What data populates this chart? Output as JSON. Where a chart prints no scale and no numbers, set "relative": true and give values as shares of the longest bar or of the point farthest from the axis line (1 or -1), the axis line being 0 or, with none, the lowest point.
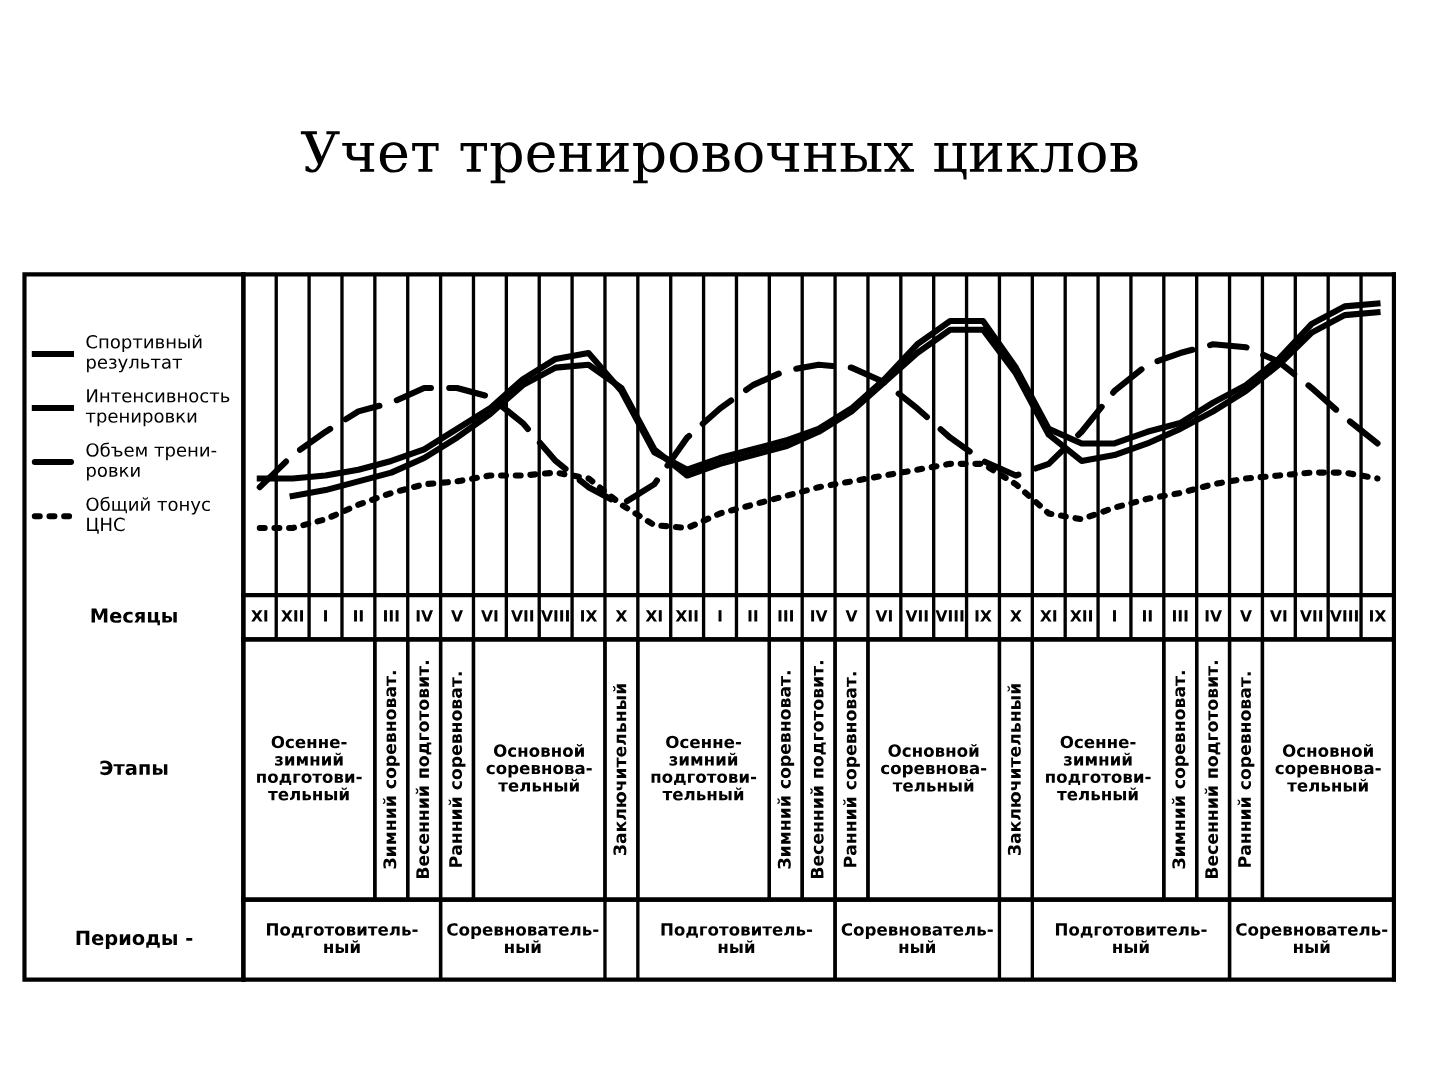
{
  "chart_data": [
    {
      "type": "line",
      "title": "Учет тренировочных циклов",
      "xlabel": "Месяцы",
      "relative": true,
      "grid": "x",
      "legend": "left",
      "categories": [
        "XI",
        "XII",
        "I",
        "II",
        "III",
        "IV",
        "V",
        "VI",
        "VII",
        "VIII",
        "IX",
        "X",
        "XI",
        "XII",
        "I",
        "II",
        "III",
        "IV",
        "V",
        "VI",
        "VII",
        "VIII",
        "IX",
        "X",
        "XI",
        "XII",
        "I",
        "II",
        "III",
        "IV",
        "V",
        "VI",
        "VII",
        "VIII",
        "IX"
      ],
      "series": [
        {
          "name": "Спортивный\nрезультат",
          "color": "#000000",
          "line_style": "solid",
          "values": [
            0.4,
            0.4,
            0.41,
            0.43,
            0.46,
            0.5,
            0.57,
            0.64,
            0.74,
            0.81,
            0.83,
            0.7,
            0.49,
            0.43,
            0.47,
            0.5,
            0.53,
            0.57,
            0.64,
            0.74,
            0.86,
            0.94,
            0.94,
            0.78,
            0.57,
            0.52,
            0.52,
            0.56,
            0.59,
            0.66,
            0.72,
            0.81,
            0.93,
            0.99,
            1
          ]
        },
        {
          "name": "Интенсивность\nтренировки",
          "color": "#000000",
          "line_style": "solid",
          "values": [
            null,
            0.34,
            0.36,
            0.39,
            0.42,
            0.47,
            0.54,
            0.62,
            0.72,
            0.78,
            0.79,
            0.71,
            0.5,
            0.41,
            0.45,
            0.48,
            0.51,
            0.56,
            0.63,
            0.73,
            0.83,
            0.91,
            0.91,
            0.76,
            0.55,
            0.46,
            0.48,
            0.52,
            0.57,
            0.63,
            0.7,
            0.79,
            0.9,
            0.96,
            0.97
          ]
        },
        {
          "name": "Объем трени-\nровки",
          "color": "#000000",
          "line_style": "dashed",
          "values": [
            0.37,
            0.48,
            0.56,
            0.63,
            0.66,
            0.71,
            0.71,
            0.68,
            0.59,
            0.46,
            0.37,
            0.31,
            0.38,
            0.54,
            0.64,
            0.72,
            0.77,
            0.79,
            0.78,
            0.73,
            0.64,
            0.54,
            0.46,
            0.41,
            0.45,
            0.56,
            0.7,
            0.79,
            0.83,
            0.86,
            0.85,
            0.8,
            0.71,
            0.61,
            0.52
          ]
        },
        {
          "name": "Общий тонус\nЦНС",
          "color": "#000000",
          "line_style": "dotted",
          "values": [
            0.23,
            0.23,
            0.26,
            0.31,
            0.35,
            0.38,
            0.39,
            0.41,
            0.41,
            0.42,
            0.4,
            0.31,
            0.24,
            0.23,
            0.28,
            0.31,
            0.34,
            0.37,
            0.39,
            0.41,
            0.43,
            0.45,
            0.45,
            0.38,
            0.28,
            0.26,
            0.3,
            0.33,
            0.35,
            0.38,
            0.4,
            0.41,
            0.42,
            0.42,
            0.4
          ]
        }
      ]
    },
    {
      "type": "other",
      "ylabel": "Этапы",
      "annotations": [
        "Осенне-\nзимний\nподготови-\nтельный",
        "Зимний соревноват.",
        "Весенний подготовит.",
        "Ранний соревноват.",
        "Основной\nсоревнова-\nтельный",
        "Заключительный",
        "Осенне-\nзимний\nподготови-\nтельный",
        "Зимний соревноват.",
        "Весенний подготовит.",
        "Ранний соревноват.",
        "Основной\nсоревнова-\nтельный",
        "Заключительный",
        "Осенне-\nзимний\nподготови-\nтельный",
        "Зимний соревноват.",
        "Весенний подготовит.",
        "Ранний соревноват.",
        "Основной\nсоревнова-\nтельный"
      ]
    },
    {
      "type": "other",
      "ylabel": "Периоды -",
      "annotations": [
        "Подготовитель-\nный",
        "Соревнователь-\nный",
        "Подготовитель-\nный",
        "Соревнователь-\nный",
        "Подготовитель-\nный",
        "Соревнователь-\nный"
      ]
    }
  ]
}
